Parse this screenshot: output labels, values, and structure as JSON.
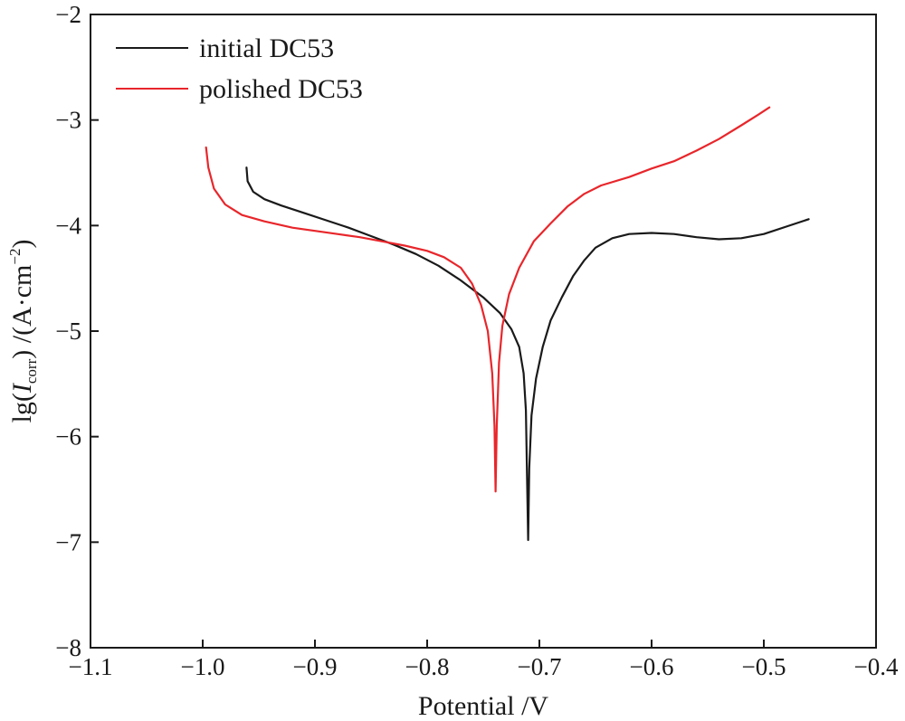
{
  "chart_data": {
    "type": "line",
    "title": "",
    "xlabel": "Potential /V",
    "ylabel": {
      "prefix": "lg(",
      "symbol": "I",
      "subscript": "corr",
      "mid": ") /(A·cm",
      "superscript": "−2",
      "suffix": ")"
    },
    "xlim": [
      -1.1,
      -0.4
    ],
    "ylim": [
      -8,
      -2
    ],
    "x_ticks": [
      -1.1,
      -1.0,
      -0.9,
      -0.8,
      -0.7,
      -0.6,
      -0.5,
      -0.4
    ],
    "x_tick_labels": [
      "−1.1",
      "−1.0",
      "−0.9",
      "−0.8",
      "−0.7",
      "−0.6",
      "−0.5",
      "−0.4"
    ],
    "y_ticks": [
      -8,
      -7,
      -6,
      -5,
      -4,
      -3,
      -2
    ],
    "y_tick_labels": [
      "−8",
      "−7",
      "−6",
      "−5",
      "−4",
      "−3",
      "−2"
    ],
    "legend_position": "top-left",
    "series": [
      {
        "name": "initial DC53",
        "color": "#1a1a1a",
        "points": [
          [
            -0.961,
            -3.45
          ],
          [
            -0.96,
            -3.58
          ],
          [
            -0.955,
            -3.68
          ],
          [
            -0.945,
            -3.75
          ],
          [
            -0.93,
            -3.81
          ],
          [
            -0.91,
            -3.88
          ],
          [
            -0.89,
            -3.95
          ],
          [
            -0.87,
            -4.02
          ],
          [
            -0.85,
            -4.1
          ],
          [
            -0.83,
            -4.18
          ],
          [
            -0.81,
            -4.27
          ],
          [
            -0.79,
            -4.38
          ],
          [
            -0.77,
            -4.52
          ],
          [
            -0.75,
            -4.68
          ],
          [
            -0.735,
            -4.83
          ],
          [
            -0.725,
            -4.98
          ],
          [
            -0.718,
            -5.15
          ],
          [
            -0.714,
            -5.4
          ],
          [
            -0.712,
            -5.75
          ],
          [
            -0.711,
            -6.4
          ],
          [
            -0.71,
            -6.98
          ],
          [
            -0.709,
            -6.3
          ],
          [
            -0.707,
            -5.8
          ],
          [
            -0.703,
            -5.45
          ],
          [
            -0.697,
            -5.15
          ],
          [
            -0.69,
            -4.9
          ],
          [
            -0.68,
            -4.68
          ],
          [
            -0.67,
            -4.48
          ],
          [
            -0.66,
            -4.33
          ],
          [
            -0.65,
            -4.21
          ],
          [
            -0.635,
            -4.12
          ],
          [
            -0.62,
            -4.08
          ],
          [
            -0.6,
            -4.07
          ],
          [
            -0.58,
            -4.08
          ],
          [
            -0.56,
            -4.11
          ],
          [
            -0.54,
            -4.13
          ],
          [
            -0.52,
            -4.12
          ],
          [
            -0.5,
            -4.08
          ],
          [
            -0.48,
            -4.01
          ],
          [
            -0.46,
            -3.94
          ]
        ]
      },
      {
        "name": "polished DC53",
        "color": "#e8262b",
        "points": [
          [
            -0.997,
            -3.26
          ],
          [
            -0.995,
            -3.45
          ],
          [
            -0.99,
            -3.65
          ],
          [
            -0.98,
            -3.8
          ],
          [
            -0.965,
            -3.9
          ],
          [
            -0.945,
            -3.96
          ],
          [
            -0.92,
            -4.02
          ],
          [
            -0.9,
            -4.05
          ],
          [
            -0.88,
            -4.08
          ],
          [
            -0.86,
            -4.11
          ],
          [
            -0.84,
            -4.15
          ],
          [
            -0.82,
            -4.19
          ],
          [
            -0.8,
            -4.24
          ],
          [
            -0.785,
            -4.3
          ],
          [
            -0.77,
            -4.4
          ],
          [
            -0.76,
            -4.55
          ],
          [
            -0.752,
            -4.75
          ],
          [
            -0.746,
            -5.0
          ],
          [
            -0.742,
            -5.4
          ],
          [
            -0.74,
            -5.9
          ],
          [
            -0.739,
            -6.52
          ],
          [
            -0.738,
            -5.9
          ],
          [
            -0.736,
            -5.3
          ],
          [
            -0.733,
            -4.95
          ],
          [
            -0.727,
            -4.65
          ],
          [
            -0.718,
            -4.4
          ],
          [
            -0.705,
            -4.15
          ],
          [
            -0.69,
            -3.98
          ],
          [
            -0.675,
            -3.82
          ],
          [
            -0.66,
            -3.7
          ],
          [
            -0.645,
            -3.62
          ],
          [
            -0.62,
            -3.54
          ],
          [
            -0.6,
            -3.46
          ],
          [
            -0.58,
            -3.39
          ],
          [
            -0.56,
            -3.29
          ],
          [
            -0.54,
            -3.18
          ],
          [
            -0.52,
            -3.05
          ],
          [
            -0.505,
            -2.95
          ],
          [
            -0.495,
            -2.88
          ]
        ]
      }
    ]
  }
}
